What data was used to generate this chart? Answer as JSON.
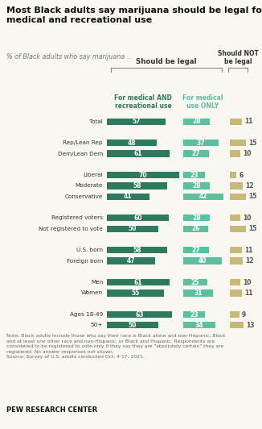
{
  "title": "Most Black adults say marijuana should be legal for\nmedical and recreational use",
  "subtitle": "% of Black adults who say marijuana ...",
  "col_header_center": "Should be legal",
  "col_header_right": "Should NOT\nbe legal",
  "col1_label": "For medical AND\nrecreational use",
  "col2_label": "For medical\nuse ONLY",
  "categories": [
    "Total",
    "",
    "Rep/Lean Rep",
    "Dem/Lean Dem",
    "",
    "Liberal",
    "Moderate",
    "Conservative",
    "",
    "Registered voters",
    "Not registered to vote",
    "",
    "U.S. born",
    "Foreign born",
    "",
    "Men",
    "Women",
    "",
    "Ages 18-49",
    "50+"
  ],
  "val1": [
    57,
    null,
    48,
    61,
    null,
    70,
    58,
    41,
    null,
    60,
    50,
    null,
    58,
    47,
    null,
    61,
    55,
    null,
    63,
    50
  ],
  "val2": [
    28,
    null,
    37,
    27,
    null,
    23,
    28,
    42,
    null,
    28,
    26,
    null,
    27,
    40,
    null,
    25,
    31,
    null,
    23,
    34
  ],
  "val3": [
    11,
    null,
    15,
    10,
    null,
    6,
    12,
    15,
    null,
    10,
    15,
    null,
    11,
    12,
    null,
    10,
    11,
    null,
    9,
    13
  ],
  "color1": "#2d7a5f",
  "color2": "#5bbfa0",
  "color3": "#c8b97a",
  "bar_height": 0.6,
  "background_color": "#f9f7f2",
  "note": "Note: Black adults include those who say their race is Black alone and non-Hispanic, Black\nand at least one other race and non-Hispanic, or Black and Hispanic. Respondents are\nconsidered to be registered to vote only if they say they are \"absolutely certain\" they are\nregistered. No answer responses not shown.\nSource: Survey of U.S. adults conducted Oct. 4-17, 2021.",
  "footer": "PEW RESEARCH CENTER"
}
